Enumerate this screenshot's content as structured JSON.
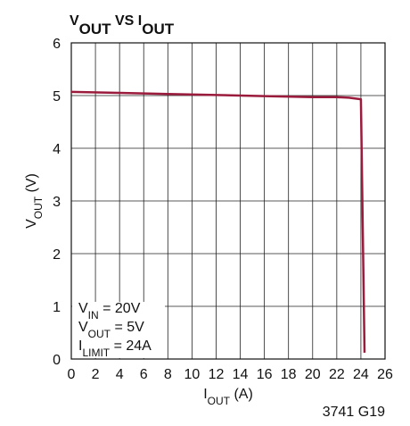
{
  "chart_data": {
    "type": "line",
    "title": [
      "V",
      "OUT",
      " VS I",
      "OUT"
    ],
    "x_label": [
      "I",
      "OUT",
      " (A)"
    ],
    "y_label": [
      "V",
      "OUT",
      " (V)"
    ],
    "annotations": [
      [
        "V",
        "IN",
        " = 20V"
      ],
      [
        "V",
        "OUT",
        " = 5V"
      ],
      [
        "I",
        "LIMIT",
        " = 24A"
      ]
    ],
    "footnote": "3741 G19",
    "x": [
      0,
      4,
      8,
      12,
      16,
      20,
      22,
      23,
      24,
      24.3
    ],
    "series": [
      {
        "color": "#9b1b3c",
        "values": [
          5.07,
          5.05,
          5.03,
          5.01,
          4.99,
          4.97,
          4.97,
          4.96,
          4.93,
          0.12
        ]
      }
    ],
    "xlim": [
      0,
      26
    ],
    "xticks": [
      0,
      2,
      4,
      6,
      8,
      10,
      12,
      14,
      16,
      18,
      20,
      22,
      24,
      26
    ],
    "ylim": [
      0,
      6
    ],
    "yticks": [
      0,
      1,
      2,
      3,
      4,
      5,
      6
    ],
    "grid": true
  }
}
